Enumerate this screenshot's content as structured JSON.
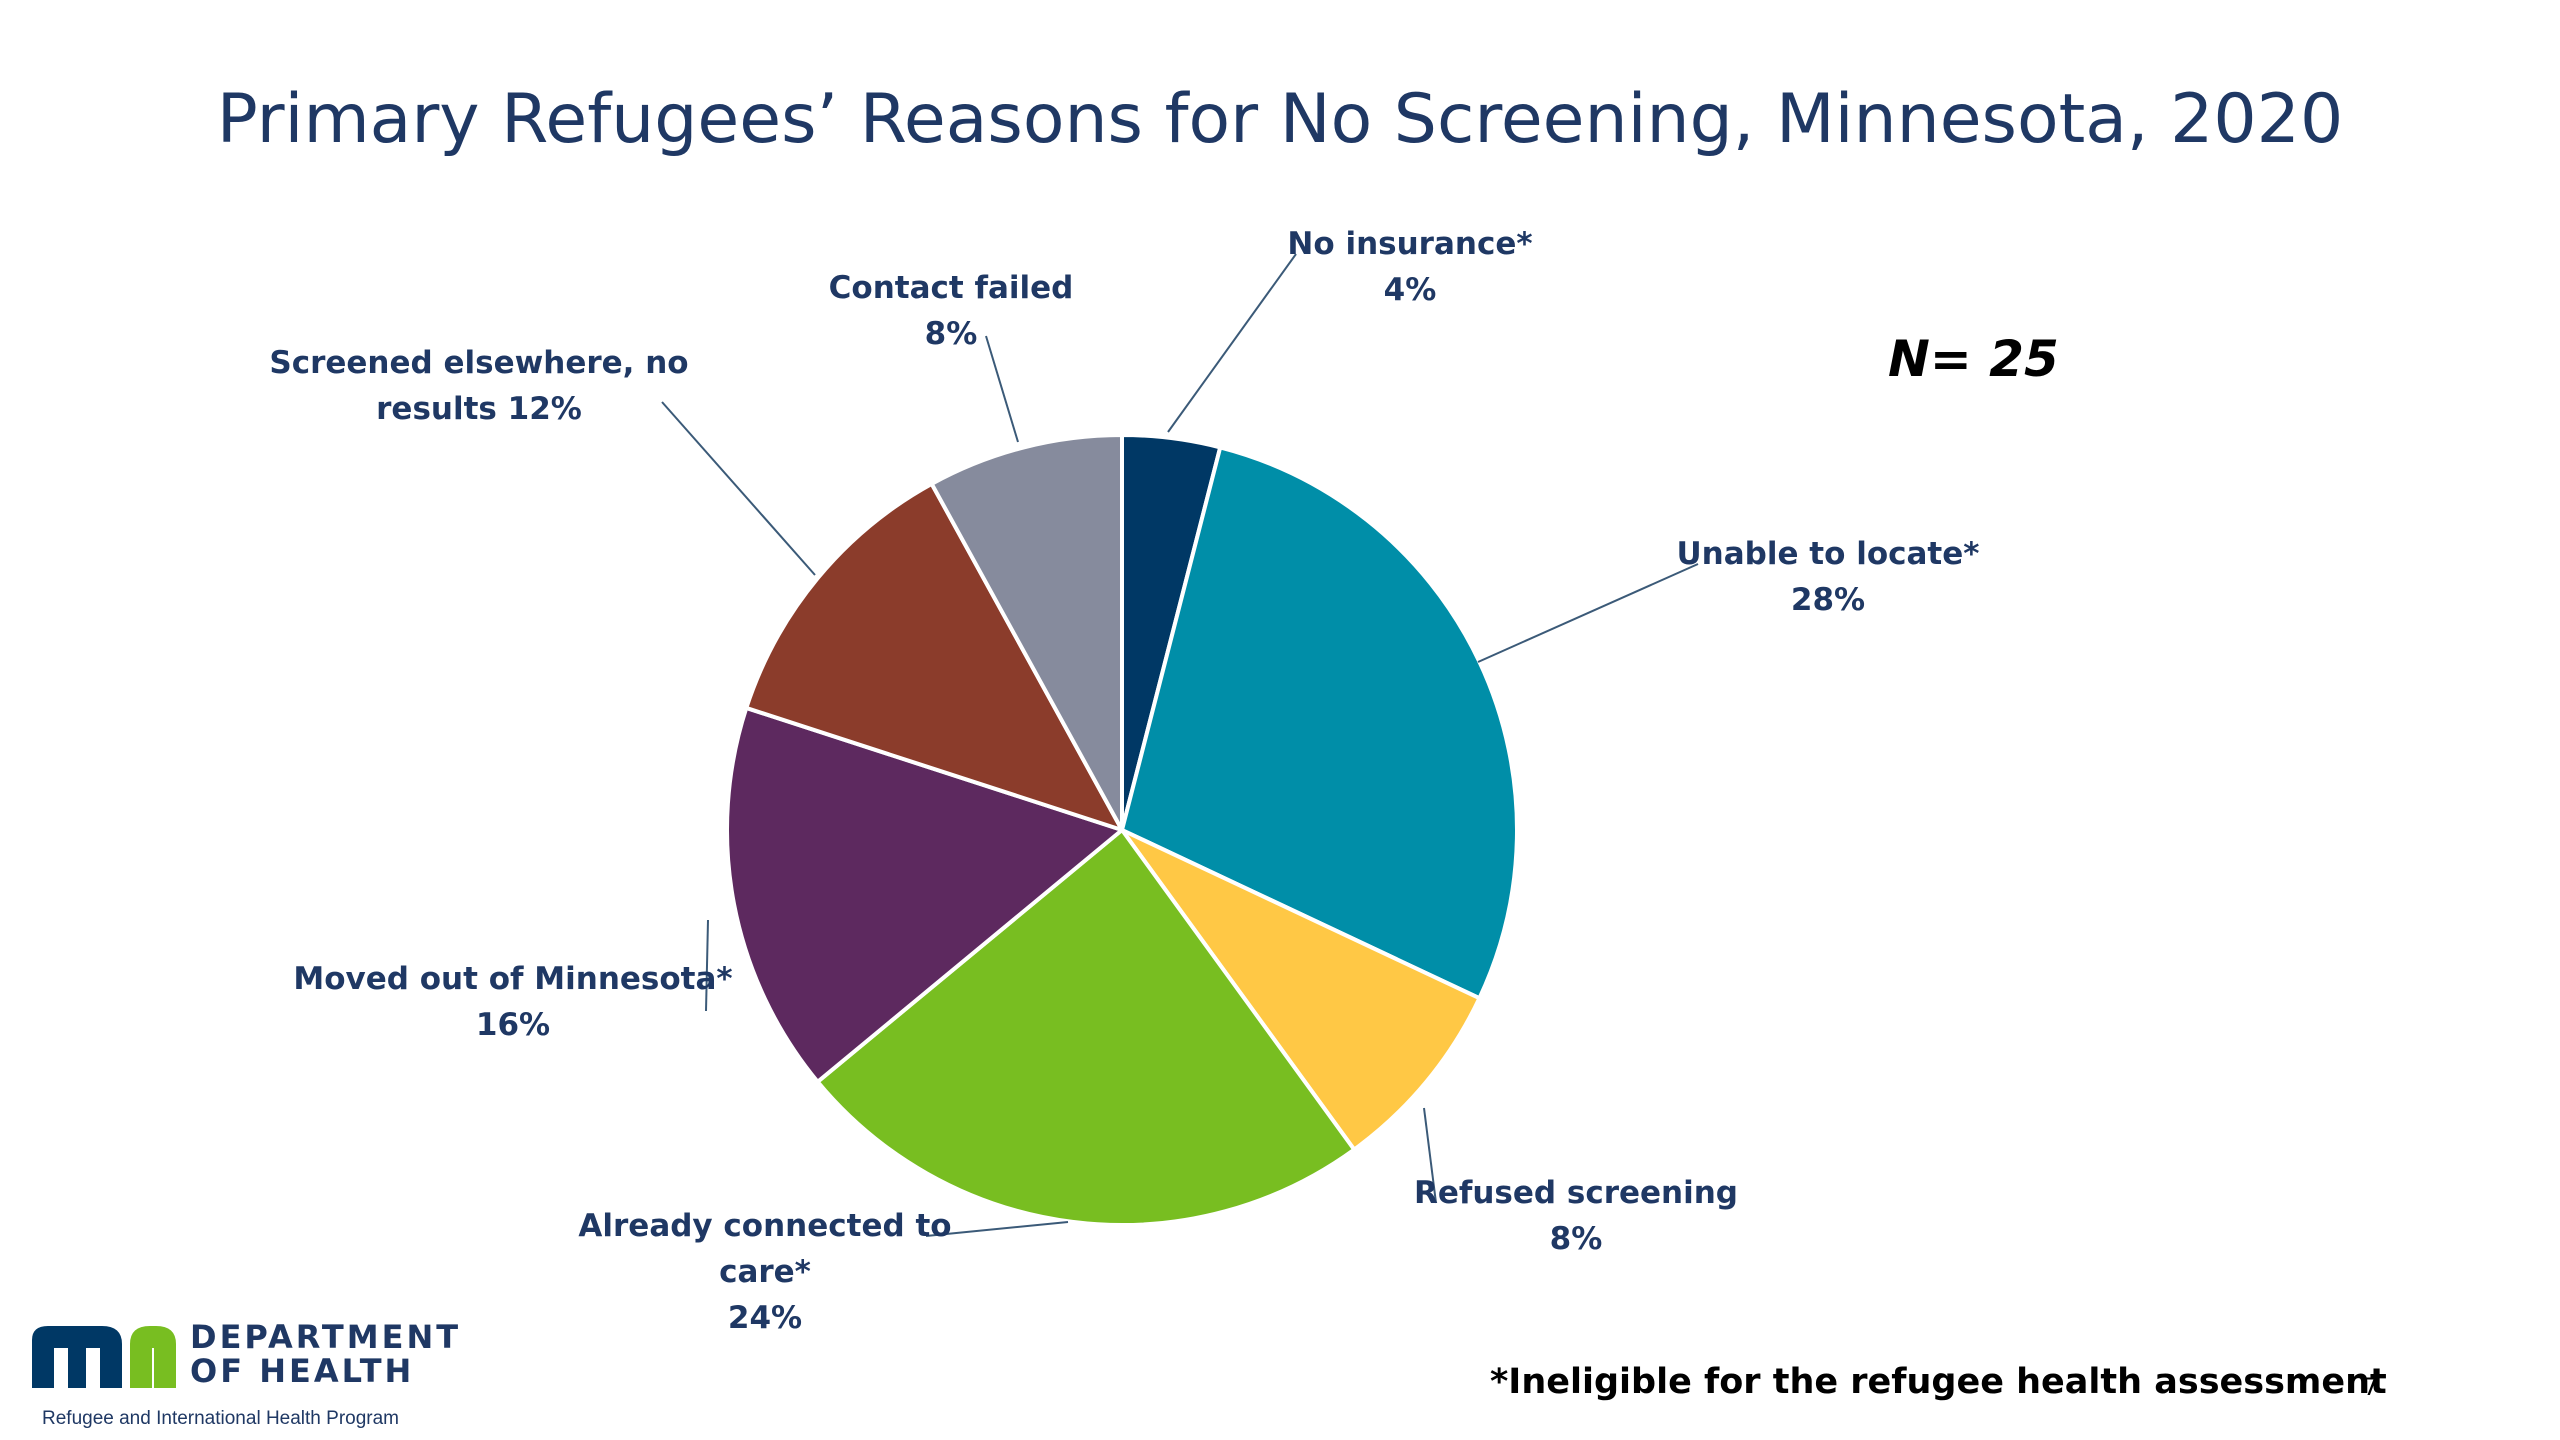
{
  "slide": {
    "title": "Primary Refugees’ Reasons for No Screening, Minnesota, 2020",
    "n_label": "N= 25",
    "footnote": "*Ineligible for the refugee health assessment",
    "page_number": "7"
  },
  "logo": {
    "line1": "DEPARTMENT",
    "line2": "OF HEALTH",
    "program": "Refugee and International Health Program",
    "mark_name": "minnesota-mn-logo",
    "colors": {
      "m": "#003865",
      "n": "#78be21"
    }
  },
  "chart_data": {
    "type": "pie",
    "title": "Primary Refugees’ Reasons for No Screening, Minnesota, 2020",
    "start_angle_deg": 0,
    "direction": "clockwise",
    "slices": [
      {
        "name": "No insurance*",
        "value": 4,
        "color": "#003865",
        "label_lines": [
          "No insurance*",
          "4%"
        ]
      },
      {
        "name": "Unable to locate*",
        "value": 28,
        "color": "#008ea8",
        "label_lines": [
          "Unable to locate*",
          "28%"
        ]
      },
      {
        "name": "Refused screening",
        "value": 8,
        "color": "#ffc845",
        "label_lines": [
          "Refused screening",
          "8%"
        ]
      },
      {
        "name": "Already connected to care*",
        "value": 24,
        "color": "#78be21",
        "label_lines": [
          "Already connected to",
          "care*",
          "24%"
        ]
      },
      {
        "name": "Moved out of Minnesota*",
        "value": 16,
        "color": "#5d295f",
        "label_lines": [
          "Moved out of Minnesota*",
          "16%"
        ]
      },
      {
        "name": "Screened elsewhere, no results",
        "value": 12,
        "color": "#8b3c2b",
        "label_lines": [
          "Screened elsewhere, no",
          "results 12%"
        ]
      },
      {
        "name": "Contact failed",
        "value": 8,
        "color": "#868b9d",
        "label_lines": [
          "Contact failed",
          "8%"
        ]
      }
    ]
  }
}
